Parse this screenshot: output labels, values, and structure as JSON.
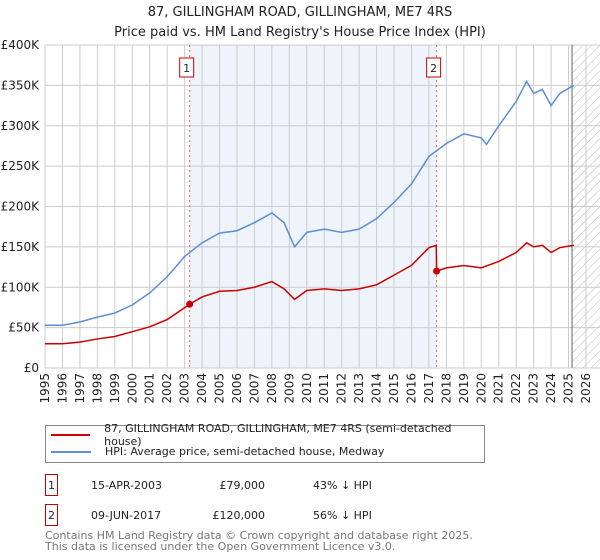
{
  "title": "87, GILLINGHAM ROAD, GILLINGHAM, ME7 4RS",
  "subtitle": "Price paid vs. HM Land Registry's House Price Index (HPI)",
  "chart_data": {
    "type": "line",
    "title": "87, GILLINGHAM ROAD, GILLINGHAM, ME7 4RS — Price paid vs. HM Land Registry's House Price Index (HPI)",
    "xlim": [
      1995,
      2026
    ],
    "ylim": [
      0,
      400000
    ],
    "yticks": [
      0,
      50000,
      100000,
      150000,
      200000,
      250000,
      300000,
      350000,
      400000
    ],
    "ytick_labels": [
      "£0",
      "£50K",
      "£100K",
      "£150K",
      "£200K",
      "£250K",
      "£300K",
      "£350K",
      "£400K"
    ],
    "xticks": [
      1995,
      1996,
      1997,
      1998,
      1999,
      2000,
      2001,
      2002,
      2003,
      2004,
      2005,
      2006,
      2007,
      2008,
      2009,
      2010,
      2011,
      2012,
      2013,
      2014,
      2015,
      2016,
      2017,
      2018,
      2019,
      2020,
      2021,
      2022,
      2023,
      2024,
      2025,
      2026
    ],
    "grid": true,
    "series": [
      {
        "name": "87, GILLINGHAM ROAD, GILLINGHAM, ME7 4RS (semi-detached house)",
        "color": "#cc0000",
        "x": [
          1995,
          1996,
          1997,
          1998,
          1999,
          2000,
          2001,
          2002,
          2003.29,
          2004,
          2005,
          2006,
          2007,
          2008,
          2008.7,
          2009.3,
          2010,
          2011,
          2012,
          2013,
          2014,
          2015,
          2016,
          2017,
          2017.42,
          2017.44,
          2018,
          2019,
          2020,
          2021,
          2022,
          2022.6,
          2023,
          2023.5,
          2024,
          2024.5,
          2025.3
        ],
        "y": [
          30000,
          30000,
          32000,
          36000,
          39000,
          45000,
          51000,
          60000,
          79000,
          88000,
          95000,
          96000,
          100000,
          107000,
          98000,
          85000,
          96000,
          98000,
          96000,
          98000,
          103000,
          115000,
          127000,
          149000,
          152000,
          120000,
          124000,
          127000,
          124000,
          132000,
          143000,
          155000,
          150000,
          152000,
          143000,
          149000,
          152000
        ]
      },
      {
        "name": "HPI: Average price, semi-detached house, Medway",
        "color": "#5b8fd6",
        "x": [
          1995,
          1996,
          1997,
          1998,
          1999,
          2000,
          2001,
          2002,
          2003,
          2004,
          2005,
          2006,
          2007,
          2008,
          2008.7,
          2009.3,
          2010,
          2011,
          2012,
          2013,
          2014,
          2015,
          2016,
          2017,
          2018,
          2019,
          2020,
          2020.3,
          2021,
          2022,
          2022.6,
          2023,
          2023.5,
          2024,
          2024.5,
          2025.3
        ],
        "y": [
          53000,
          53000,
          57000,
          63000,
          68000,
          78000,
          93000,
          113000,
          138000,
          155000,
          167000,
          170000,
          180000,
          192000,
          180000,
          150000,
          168000,
          172000,
          168000,
          172000,
          185000,
          205000,
          228000,
          262000,
          278000,
          290000,
          285000,
          277000,
          300000,
          330000,
          355000,
          340000,
          345000,
          325000,
          340000,
          350000
        ]
      }
    ],
    "shaded_range": [
      2003.29,
      2017.44
    ],
    "hatched_from": 2025.2,
    "annotations": [
      {
        "label": "1",
        "x": 2003.29,
        "y": 79000
      },
      {
        "label": "2",
        "x": 2017.44,
        "y": 120000
      }
    ]
  },
  "transactions": [
    {
      "num": "1",
      "date": "15-APR-2003",
      "price": "£79,000",
      "hpi": "43% ↓ HPI"
    },
    {
      "num": "2",
      "date": "09-JUN-2017",
      "price": "£120,000",
      "hpi": "56% ↓ HPI"
    }
  ],
  "footer": [
    "Contains HM Land Registry data © Crown copyright and database right 2025.",
    "This data is licensed under the Open Government Licence v3.0."
  ]
}
